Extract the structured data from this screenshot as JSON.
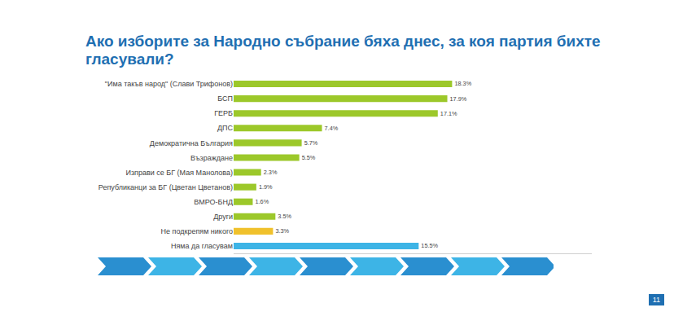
{
  "chart_data": {
    "type": "bar",
    "orientation": "horizontal",
    "title": "Ако изборите за Народно събрание бяха днес, за коя партия бихте гласували?",
    "categories": [
      "\"Има такъв народ\" (Слави Трифонов)",
      "БСП",
      "ГЕРБ",
      "ДПС",
      "Демократична България",
      "Възраждане",
      "Изправи се БГ (Мая Манолова)",
      "Републиканци за БГ (Цветан Цветанов)",
      "ВМРО-БНД",
      "Други",
      "Не подкрепям никого",
      "Няма да гласувам"
    ],
    "values": [
      18.3,
      17.9,
      17.1,
      7.4,
      5.7,
      5.5,
      2.3,
      1.9,
      1.6,
      3.5,
      3.3,
      15.5
    ],
    "value_labels": [
      "18.3%",
      "17.9%",
      "17.1%",
      "7.4%",
      "5.7%",
      "5.5%",
      "2.3%",
      "1.9%",
      "1.6%",
      "3.5%",
      "3.3%",
      "15.5%"
    ],
    "colors": [
      "#9cc82a",
      "#9cc82a",
      "#9cc82a",
      "#9cc82a",
      "#9cc82a",
      "#9cc82a",
      "#9cc82a",
      "#9cc82a",
      "#9cc82a",
      "#9cc82a",
      "#f0c12c",
      "#3db4e6"
    ],
    "xlim": [
      0,
      30
    ],
    "xticks": [],
    "grid": false,
    "data_labels": true,
    "tick_labels": "y"
  },
  "page": "11"
}
